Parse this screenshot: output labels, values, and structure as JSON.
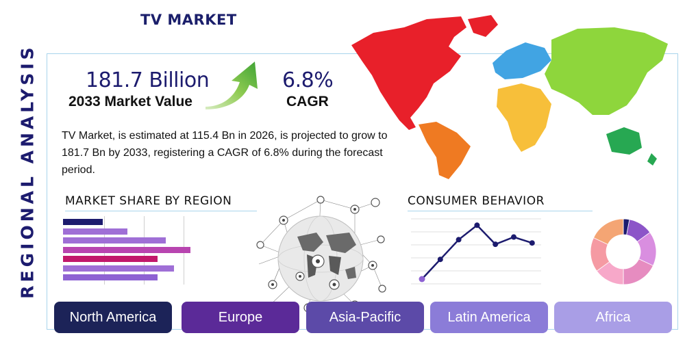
{
  "vertical_title": "REGIONAL ANALYSIS",
  "title": "TV MARKET",
  "market_value": {
    "value": "181.7 Billion",
    "label": "2033 Market Value"
  },
  "cagr": {
    "value": "6.8%",
    "label": "CAGR"
  },
  "description": "TV Market, is estimated at 115.4 Bn in 2026, is projected to grow to 181.7 Bn by 2033, registering a CAGR of 6.8% during the forecast period.",
  "market_share": {
    "title": "MARKET SHARE BY REGION",
    "bar_values": [
      29,
      47,
      75,
      93,
      69,
      81,
      69
    ],
    "bar_colors": [
      "#1c1b6e",
      "#9f6fd6",
      "#9f6fd6",
      "#b845b0",
      "#c2186b",
      "#9f6fd6",
      "#8e62d3"
    ]
  },
  "consumer_behavior": {
    "title": "CONSUMER BEHAVIOR",
    "line_values": [
      0,
      30,
      60,
      82,
      53,
      64,
      55
    ],
    "donut_colors": [
      "#1c1b6e",
      "#8c55c8",
      "#d98ee0",
      "#e68cc0",
      "#f7a8c9",
      "#f59aa3",
      "#f4a574"
    ],
    "donut_values": [
      3,
      12,
      17,
      18,
      15,
      17,
      18
    ]
  },
  "regions": [
    {
      "label": "North America",
      "color": "#1c2358"
    },
    {
      "label": "Europe",
      "color": "#5b2a98"
    },
    {
      "label": "Asia-Pacific",
      "color": "#5c4aa8"
    },
    {
      "label": "Latin America",
      "color": "#8b7cd8"
    },
    {
      "label": "Africa",
      "color": "#a99ee6"
    }
  ],
  "map_colors": {
    "north_america": "#e8202a",
    "south_america": "#ef7a22",
    "europe": "#41a4e3",
    "asia": "#8ed63c",
    "africa": "#f7bf3a",
    "oceania": "#27a852"
  }
}
